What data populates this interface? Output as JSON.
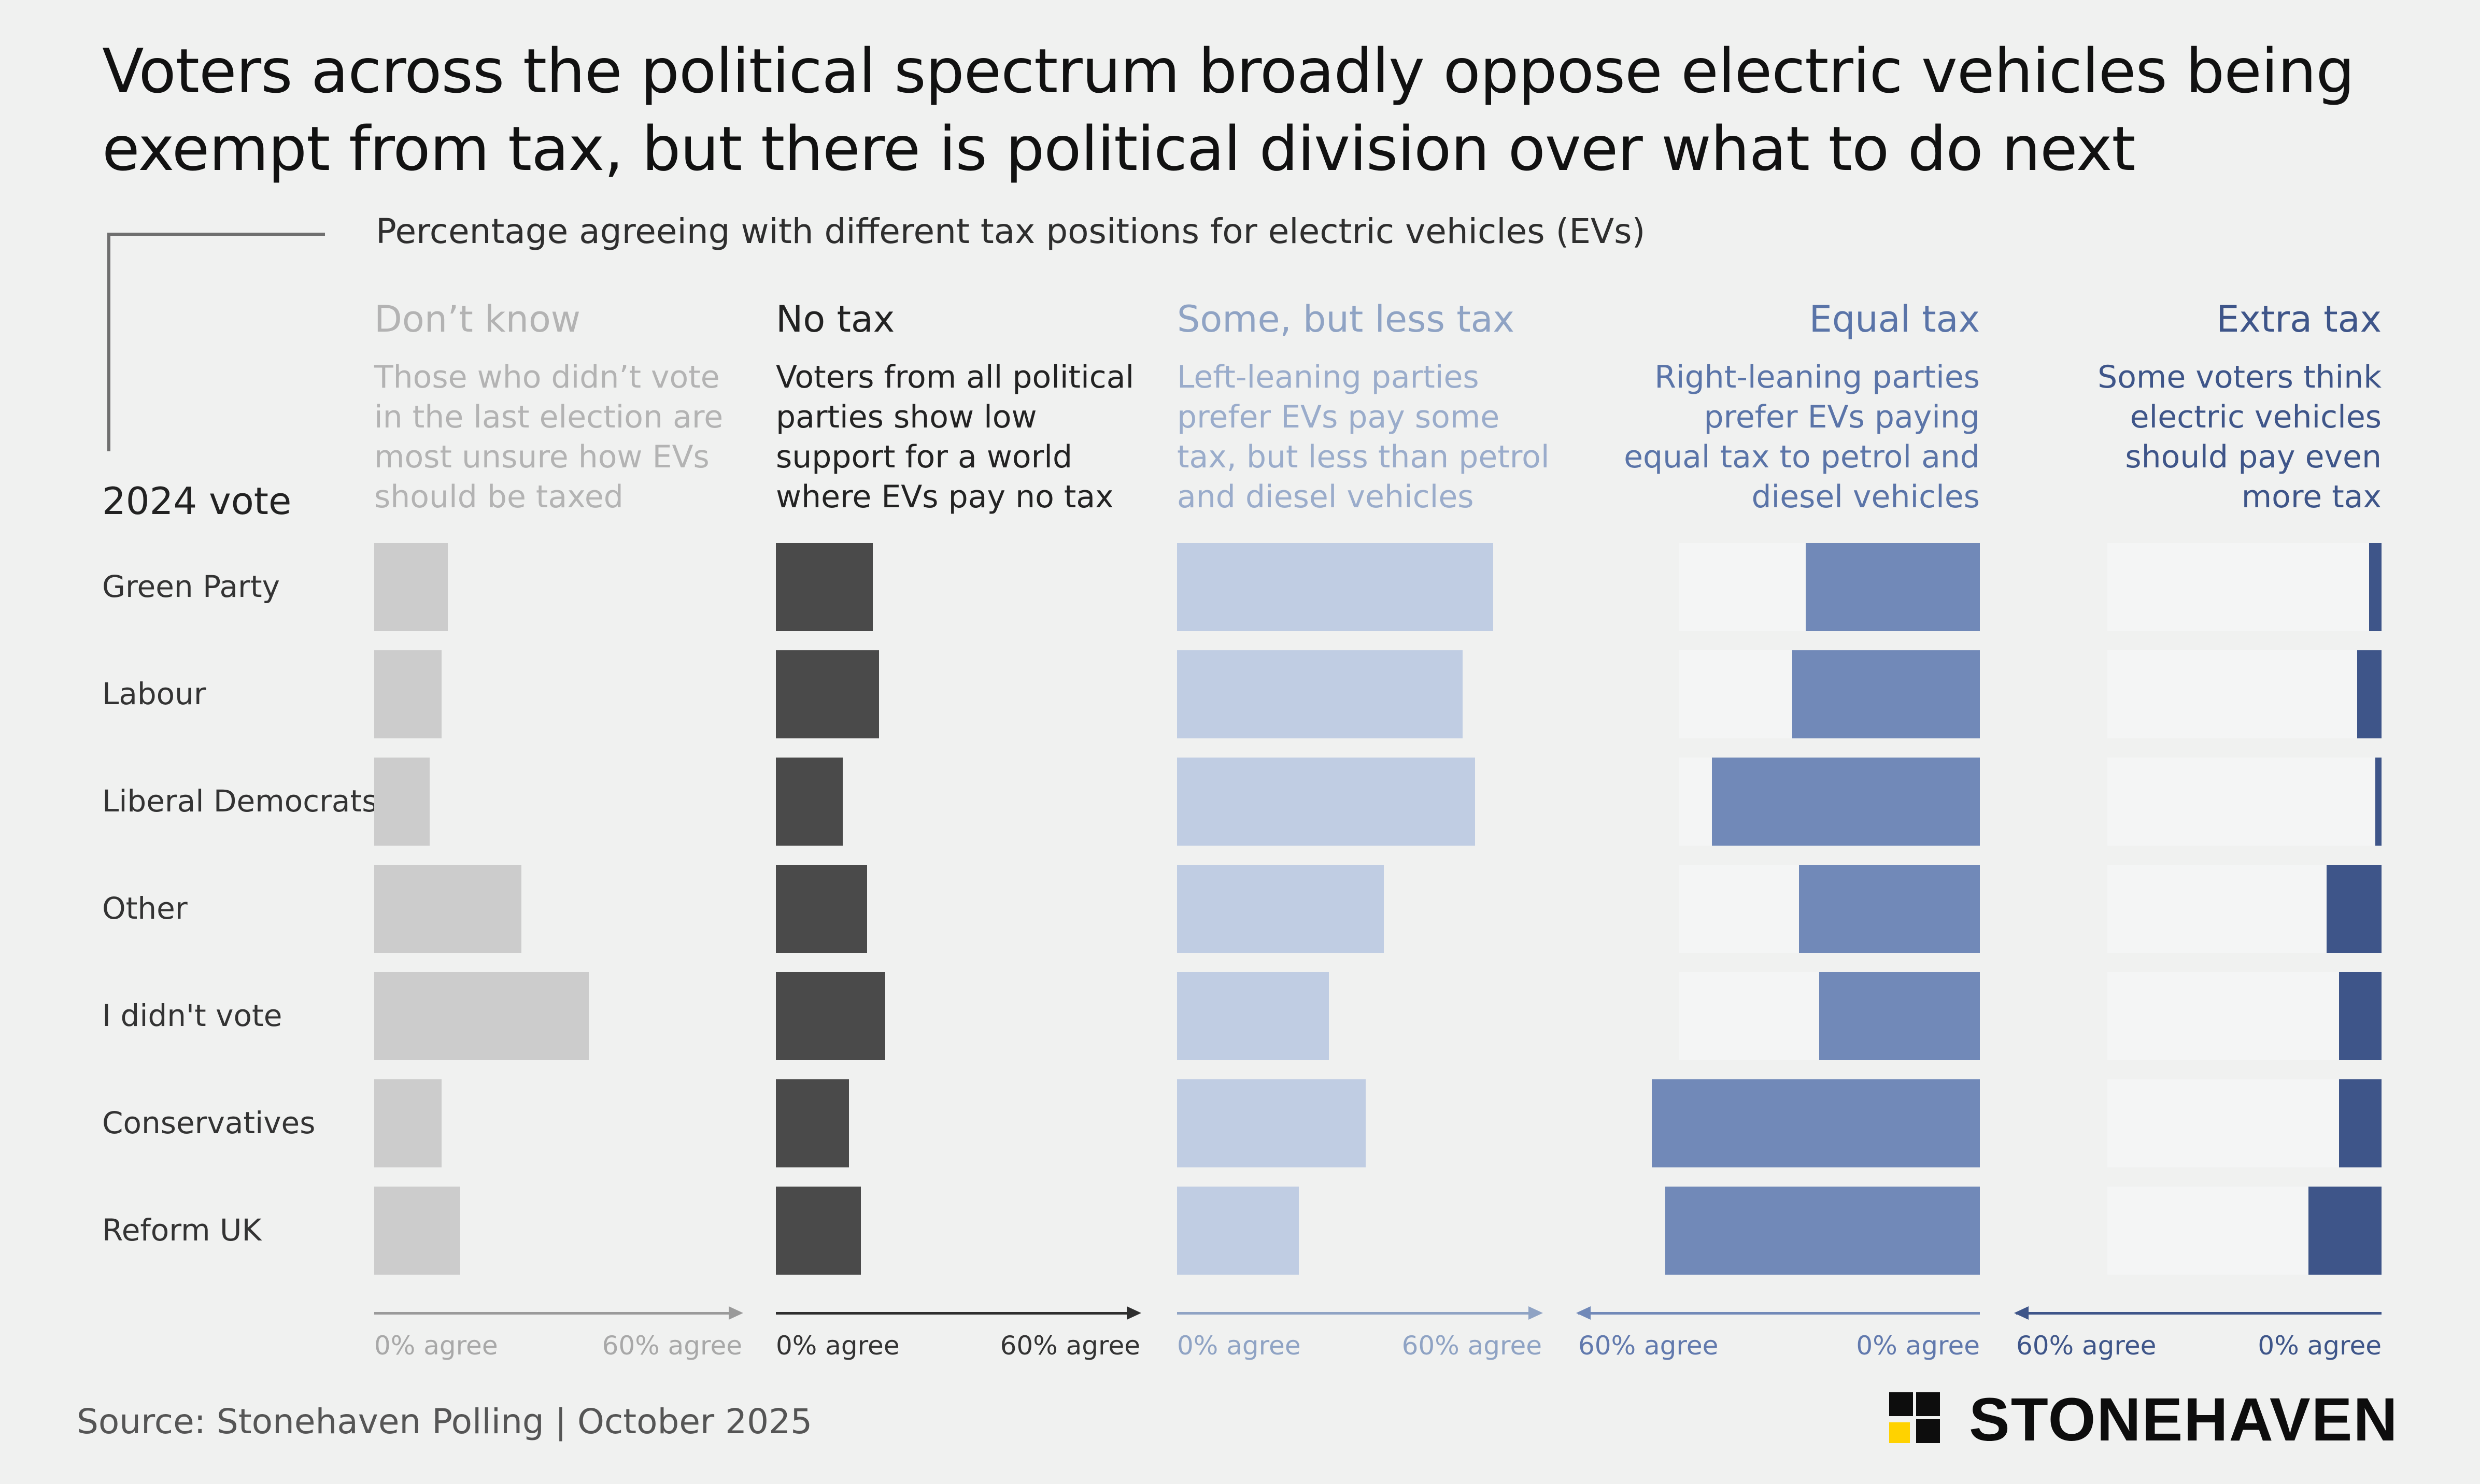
{
  "title": "Voters across the political spectrum broadly oppose electric vehicles being exempt from tax, but there is political division over what to do next",
  "subtitle": "Percentage agreeing with different tax positions for electric vehicles (EVs)",
  "row_header": "2024 vote",
  "source": "Source: Stonehaven Polling | October 2025",
  "logo_text": "STONEHAVEN",
  "colors": {
    "background": "#f0f1f0",
    "dont_know": "#cccccc",
    "no_tax": "#4a4a4a",
    "less_tax": "#c0cde3",
    "equal_tax": "#7189b8",
    "extra_tax": "#3e5589",
    "logo_accent": "#ffd200"
  },
  "columns": [
    {
      "key": "dont_know",
      "title": "Don’t know",
      "desc": "Those who didn’t vote\nin the last election are\nmost unsure how EVs\nshould be taxed",
      "axis_start": "0% agree",
      "axis_end": "60% agree"
    },
    {
      "key": "no_tax",
      "title": "No tax",
      "desc": "Voters from all political\nparties show low\nsupport for a world\nwhere EVs pay no tax",
      "axis_start": "0% agree",
      "axis_end": "60% agree"
    },
    {
      "key": "less_tax",
      "title": "Some, but less tax",
      "desc": "Left-leaning parties\nprefer EVs pay some\ntax, but less than petrol\nand diesel vehicles",
      "axis_start": "0% agree",
      "axis_end": "60% agree"
    },
    {
      "key": "equal_tax",
      "title": "Equal tax",
      "desc": "Right-leaning parties\nprefer EVs paying\nequal tax to petrol and\ndiesel vehicles",
      "axis_start": "60% agree",
      "axis_end": "0% agree"
    },
    {
      "key": "extra_tax",
      "title": "Extra tax",
      "desc": "Some voters think\nelectric vehicles\nshould pay even\nmore tax",
      "axis_start": "60% agree",
      "axis_end": "0% agree"
    }
  ],
  "chart_data": {
    "type": "bar",
    "orientation": "horizontal",
    "categories": [
      "Green Party",
      "Labour",
      "Liberal Democrats",
      "Other",
      "I didn't vote",
      "Conservatives",
      "Reform UK"
    ],
    "xlim": [
      0,
      60
    ],
    "unit": "% agree",
    "series": [
      {
        "name": "Don’t know",
        "values": [
          12,
          11,
          9,
          24,
          35,
          11,
          14
        ]
      },
      {
        "name": "No tax",
        "values": [
          16,
          17,
          11,
          15,
          18,
          12,
          14
        ]
      },
      {
        "name": "Some, but less tax",
        "values": [
          52,
          47,
          49,
          34,
          25,
          31,
          20
        ]
      },
      {
        "name": "Equal tax",
        "values": [
          26,
          28,
          40,
          27,
          24,
          49,
          47
        ]
      },
      {
        "name": "Extra tax",
        "values": [
          2,
          4,
          1,
          9,
          7,
          7,
          12
        ]
      }
    ]
  }
}
